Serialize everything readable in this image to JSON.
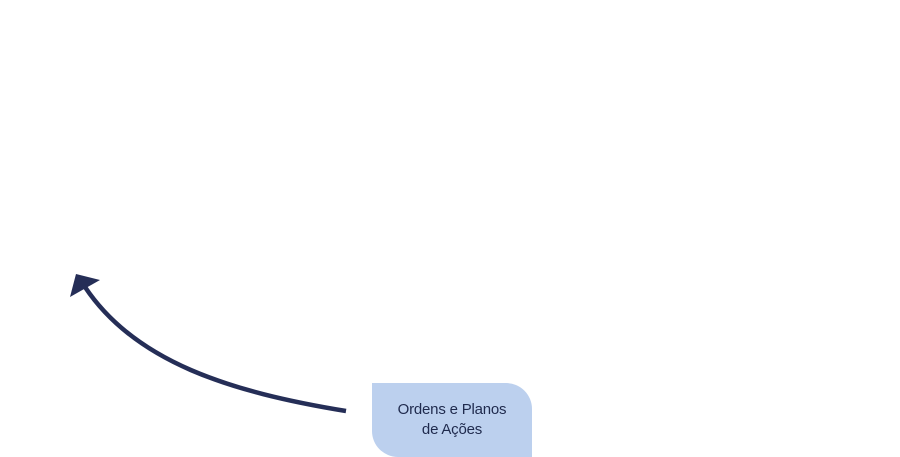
{
  "diagram": {
    "node": {
      "label": "Ordens e Planos\nde Ações"
    },
    "connector": {
      "direction": "from-node-to-upper-left",
      "head": "triangle"
    }
  },
  "colors": {
    "background": "#ffffff",
    "node_fill": "#bcd0ee",
    "node_text": "#1f2a4d",
    "arrow": "#252e57"
  }
}
